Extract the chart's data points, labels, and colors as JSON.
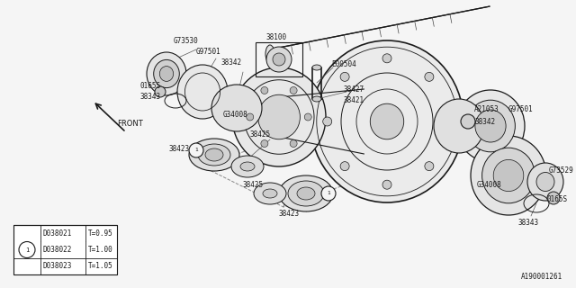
{
  "bg_color": "#f5f5f5",
  "line_color": "#1a1a1a",
  "line_width": 0.8,
  "font_size": 5.5,
  "image_id": "A190001261",
  "table_rows": [
    [
      "D038021",
      "T=0.95"
    ],
    [
      "D038022",
      "T=1.00"
    ],
    [
      "D038023",
      "T=1.05"
    ]
  ],
  "table_circle_row": 1
}
